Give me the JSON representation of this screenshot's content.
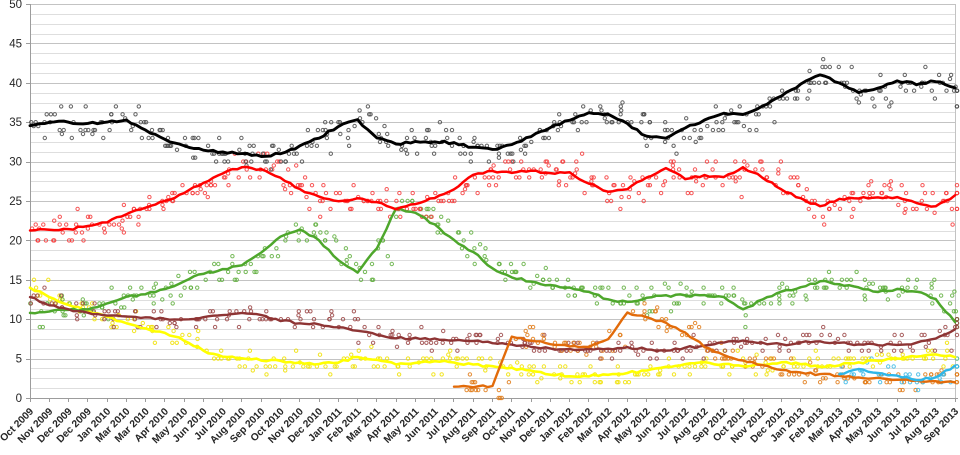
{
  "chart_data": {
    "type": "line",
    "title": "",
    "xlabel": "",
    "ylabel": "",
    "ylim": [
      0,
      50
    ],
    "y_major_step": 5,
    "y_minor_step": 1.25,
    "y_tick_labels": [
      "0",
      "5",
      "10",
      "15",
      "20",
      "25",
      "30",
      "35",
      "40",
      "45",
      "50"
    ],
    "grid": true,
    "legend": "none",
    "scatter_points": "individual polls plotted as small open circles around each trend line",
    "x_tick_labels": [
      "Oct 2009",
      "Nov 2009",
      "Dec 2009",
      "Dec 2009",
      "Jan 2010",
      "Mar 2010",
      "Mar 2010",
      "Apr 2010",
      "May 2010",
      "Jun 2010",
      "Jul 2010",
      "Aug 2010",
      "Sep 2010",
      "Oct 2010",
      "Nov 2010",
      "Dec 2010",
      "Jan 2011",
      "Feb 2011",
      "Mar 2011",
      "Apr 2011",
      "May 2011",
      "Jun 2011",
      "Jul 2011",
      "Aug 2011",
      "Sep 2011",
      "Oct 2011",
      "Nov 2011",
      "Dec 2011",
      "Jan 2012",
      "Feb 2012",
      "Mar 2012",
      "Apr 2012",
      "May 2012",
      "Jun 2012",
      "Jul 2012",
      "Aug 2012",
      "Sep 2012",
      "Oct 2012",
      "Nov 2012",
      "Dec 2012",
      "Jan 2013",
      "Feb 2013",
      "Mar 2013",
      "Apr 2013",
      "May 2013",
      "Jun 2013",
      "Jul 2013",
      "Aug 2013",
      "Sep 2013"
    ],
    "series": [
      {
        "name": "yellow",
        "color": "#ffff00",
        "scatter_color": "#f0e000",
        "values": [
          14.0,
          12.8,
          11.8,
          11.0,
          10.3,
          9.5,
          8.8,
          8.3,
          7.3,
          6.0,
          5.2,
          5.0,
          4.8,
          4.7,
          4.5,
          4.3,
          4.5,
          5.2,
          4.8,
          4.3,
          4.5,
          4.7,
          4.5,
          4.2,
          4.0,
          3.8,
          3.5,
          3.0,
          2.8,
          2.8,
          3.0,
          3.2,
          3.5,
          4.0,
          4.3,
          4.5,
          4.3,
          4.0,
          4.2,
          4.5,
          4.3,
          4.0,
          4.2,
          4.5,
          4.7,
          5.0,
          5.3,
          5.5,
          5.2
        ]
      },
      {
        "name": "green",
        "color": "#4ea72c",
        "scatter_color": "#5fae3d",
        "values": [
          10.8,
          11.0,
          11.2,
          11.2,
          12.0,
          12.8,
          13.2,
          13.8,
          14.8,
          15.8,
          16.3,
          16.8,
          18.5,
          20.5,
          21.4,
          20.0,
          17.5,
          15.9,
          19.0,
          24.0,
          23.5,
          22.0,
          20.0,
          18.5,
          16.5,
          15.3,
          14.8,
          14.3,
          14.0,
          13.5,
          12.5,
          12.2,
          12.7,
          13.0,
          13.0,
          13.0,
          12.8,
          11.2,
          12.5,
          13.5,
          14.0,
          14.8,
          14.5,
          14.0,
          13.5,
          13.8,
          13.5,
          12.5,
          9.7
        ]
      },
      {
        "name": "dark-red",
        "color": "#8e3434",
        "scatter_color": "#9a4444",
        "values": [
          12.8,
          11.8,
          11.2,
          10.8,
          10.5,
          10.3,
          10.3,
          10.0,
          10.0,
          10.2,
          10.5,
          10.8,
          10.5,
          9.8,
          9.5,
          9.3,
          9.0,
          8.5,
          8.0,
          7.6,
          7.6,
          7.5,
          7.3,
          7.2,
          7.0,
          6.8,
          6.5,
          6.3,
          6.2,
          6.2,
          6.3,
          6.4,
          6.2,
          6.0,
          6.4,
          6.6,
          7.0,
          7.3,
          7.0,
          6.8,
          7.0,
          7.2,
          7.0,
          6.8,
          6.7,
          6.8,
          7.0,
          7.5,
          8.7
        ]
      },
      {
        "name": "red",
        "color": "#ff0000",
        "scatter_color": "#f63b3b",
        "values": [
          21.3,
          21.4,
          21.4,
          21.8,
          22.3,
          23.3,
          24.2,
          25.0,
          26.0,
          27.3,
          28.5,
          29.3,
          29.0,
          28.0,
          26.5,
          25.5,
          25.0,
          25.3,
          24.8,
          24.0,
          24.6,
          25.4,
          26.5,
          28.3,
          28.8,
          28.6,
          28.8,
          28.5,
          28.6,
          27.2,
          26.2,
          26.5,
          28.0,
          29.2,
          27.8,
          28.3,
          28.0,
          29.3,
          28.0,
          26.5,
          25.3,
          24.3,
          25.3,
          25.3,
          25.5,
          25.5,
          24.8,
          24.3,
          25.7
        ]
      },
      {
        "name": "black",
        "color": "#000000",
        "scatter_color": "#4a4a4a",
        "values": [
          34.6,
          35.0,
          35.0,
          34.8,
          35.0,
          35.3,
          34.0,
          32.8,
          32.0,
          31.5,
          31.2,
          31.0,
          30.7,
          31.0,
          32.0,
          33.0,
          34.5,
          35.3,
          33.0,
          32.2,
          32.5,
          32.5,
          32.4,
          31.8,
          31.5,
          32.2,
          33.2,
          34.3,
          35.3,
          36.2,
          36.0,
          34.8,
          33.2,
          33.0,
          34.3,
          35.3,
          36.2,
          36.0,
          37.0,
          38.3,
          39.8,
          41.0,
          40.0,
          38.8,
          39.3,
          40.3,
          39.8,
          40.2,
          39.4
        ]
      },
      {
        "name": "orange",
        "color": "#e26b0a",
        "scatter_color": "#e07b18",
        "values": [
          null,
          null,
          null,
          null,
          null,
          null,
          null,
          null,
          null,
          null,
          null,
          null,
          null,
          null,
          null,
          null,
          null,
          null,
          null,
          null,
          null,
          null,
          1.4,
          1.4,
          1.5,
          7.8,
          7.3,
          6.8,
          6.5,
          6.5,
          7.5,
          10.8,
          10.3,
          9.5,
          8.3,
          6.5,
          5.5,
          4.8,
          4.2,
          3.6,
          3.2,
          3.0,
          2.8,
          2.6,
          2.5,
          2.3,
          2.2,
          2.1,
          2.0
        ]
      },
      {
        "name": "light-blue",
        "color": "#2eb6e8",
        "scatter_color": "#3bb9e6",
        "values": [
          null,
          null,
          null,
          null,
          null,
          null,
          null,
          null,
          null,
          null,
          null,
          null,
          null,
          null,
          null,
          null,
          null,
          null,
          null,
          null,
          null,
          null,
          null,
          null,
          null,
          null,
          null,
          null,
          null,
          null,
          null,
          null,
          null,
          null,
          null,
          null,
          null,
          null,
          null,
          null,
          null,
          null,
          3.0,
          3.7,
          3.2,
          2.8,
          2.3,
          2.6,
          4.1
        ]
      }
    ],
    "style": {
      "minor_grid_color": "#dedede",
      "major_grid_color": "#c3c3c3",
      "axis_color": "#9c9c9c",
      "tick_label_color": "#262626",
      "background": "#ffffff"
    }
  }
}
